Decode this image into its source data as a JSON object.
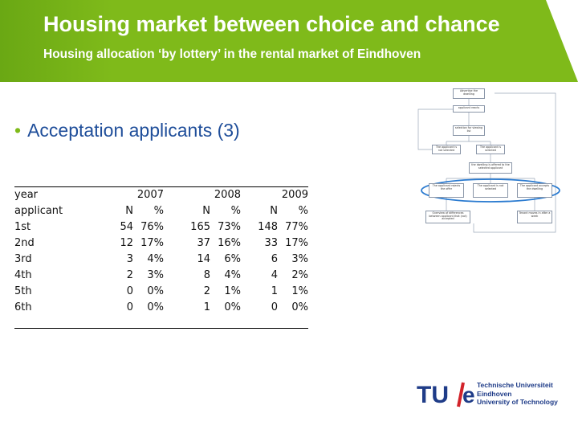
{
  "header": {
    "title": "Housing market between choice and chance",
    "subtitle": "Housing allocation ‘by lottery’ in the rental market of Eindhoven"
  },
  "bullet": "Acceptation applicants (3)",
  "table": {
    "year_label": "year",
    "applicant_label": "applicant",
    "years": [
      "2007",
      "2008",
      "2009"
    ],
    "col_n": "N",
    "col_pct": "%",
    "rows": [
      {
        "label": "1st",
        "values": [
          [
            "54",
            "76%"
          ],
          [
            "165",
            "73%"
          ],
          [
            "148",
            "77%"
          ]
        ]
      },
      {
        "label": "2nd",
        "values": [
          [
            "12",
            "17%"
          ],
          [
            "37",
            "16%"
          ],
          [
            "33",
            "17%"
          ]
        ]
      },
      {
        "label": "3rd",
        "values": [
          [
            "3",
            "4%"
          ],
          [
            "14",
            "6%"
          ],
          [
            "6",
            "3%"
          ]
        ]
      },
      {
        "label": "4th",
        "values": [
          [
            "2",
            "3%"
          ],
          [
            "8",
            "4%"
          ],
          [
            "4",
            "2%"
          ]
        ]
      },
      {
        "label": "5th",
        "values": [
          [
            "0",
            "0%"
          ],
          [
            "2",
            "1%"
          ],
          [
            "1",
            "1%"
          ]
        ]
      },
      {
        "label": "6th",
        "values": [
          [
            "0",
            "0%"
          ],
          [
            "1",
            "0%"
          ],
          [
            "0",
            "0%"
          ]
        ]
      }
    ]
  },
  "flowchart": {
    "boxes": [
      "Advertise the dwelling",
      "applicant reacts",
      "selection for viewing list",
      "The applicant is not selected",
      "The applicant is selected",
      "the dwelling is offered to the selected applicant",
      "The applicant rejects the offer",
      "The applicant is not selected",
      "The applicant accepts the dwelling",
      "Overview of differences between applicant that (not) accepted",
      "Tenant moves in after a week"
    ]
  },
  "logo": {
    "mark_left": "TU",
    "mark_right": "e",
    "lines": [
      "Technische Universiteit",
      "Eindhoven",
      "University of Technology"
    ]
  },
  "colors": {
    "brand_green": "#7fba1a",
    "bullet_blue": "#1f4e9a",
    "logo_blue": "#1f3c88",
    "logo_red": "#d2232a"
  }
}
